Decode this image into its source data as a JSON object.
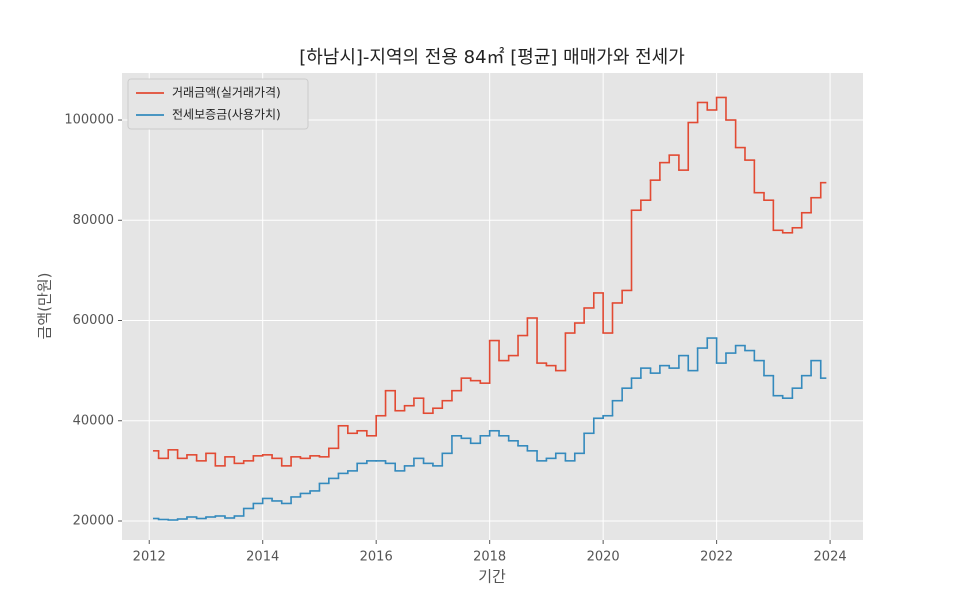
{
  "chart_data": {
    "type": "line",
    "drawstyle": "steps",
    "title": "[하남시]-지역의 전용 84㎡ [평균] 매매가와 전세가",
    "x_label": "기간",
    "y_label": "금액(만원)",
    "x": [
      2012.08,
      2012.25,
      2012.42,
      2012.58,
      2012.75,
      2012.92,
      2013.08,
      2013.25,
      2013.42,
      2013.58,
      2013.75,
      2013.92,
      2014.08,
      2014.25,
      2014.42,
      2014.58,
      2014.75,
      2014.92,
      2015.08,
      2015.25,
      2015.42,
      2015.58,
      2015.75,
      2015.92,
      2016.08,
      2016.25,
      2016.42,
      2016.58,
      2016.75,
      2016.92,
      2017.08,
      2017.25,
      2017.42,
      2017.58,
      2017.75,
      2017.92,
      2018.08,
      2018.25,
      2018.42,
      2018.58,
      2018.75,
      2018.92,
      2019.08,
      2019.25,
      2019.42,
      2019.58,
      2019.75,
      2019.92,
      2020.08,
      2020.25,
      2020.42,
      2020.58,
      2020.75,
      2020.92,
      2021.08,
      2021.25,
      2021.42,
      2021.58,
      2021.75,
      2021.92,
      2022.08,
      2022.25,
      2022.42,
      2022.58,
      2022.75,
      2022.92,
      2023.08,
      2023.25,
      2023.42,
      2023.58,
      2023.75,
      2023.92
    ],
    "series": [
      {
        "name": "거래금액(실거래가격)",
        "color": "#e24a33",
        "values": [
          34000,
          32500,
          34200,
          32500,
          33200,
          32000,
          33500,
          31000,
          32800,
          31500,
          32000,
          33000,
          33200,
          32500,
          31000,
          32800,
          32500,
          33000,
          32800,
          34500,
          39000,
          37500,
          38000,
          37000,
          41000,
          46000,
          42000,
          43000,
          44500,
          41500,
          42500,
          44000,
          46000,
          48500,
          48000,
          47500,
          56000,
          52000,
          53000,
          57000,
          60500,
          51500,
          51000,
          50000,
          57500,
          59500,
          62500,
          65500,
          57500,
          63500,
          66000,
          82000,
          84000,
          88000,
          91500,
          93000,
          90000,
          99500,
          103500,
          102000,
          104500,
          100000,
          94500,
          92000,
          85500,
          84000,
          78000,
          77500,
          78500,
          81500,
          84500,
          87500
        ]
      },
      {
        "name": "전세보증금(사용가치)",
        "color": "#348abd",
        "values": [
          20500,
          20300,
          20200,
          20400,
          20800,
          20500,
          20800,
          21000,
          20600,
          21000,
          22500,
          23500,
          24500,
          24000,
          23500,
          24800,
          25500,
          26000,
          27500,
          28500,
          29500,
          30000,
          31500,
          32000,
          32000,
          31500,
          30000,
          31000,
          32500,
          31500,
          31000,
          33500,
          37000,
          36500,
          35500,
          37000,
          38000,
          37000,
          36000,
          35000,
          34000,
          32000,
          32500,
          33500,
          32000,
          33500,
          37500,
          40500,
          41000,
          44000,
          46500,
          48500,
          50500,
          49500,
          51000,
          50500,
          53000,
          50000,
          54500,
          56500,
          51500,
          53500,
          55000,
          54000,
          52000,
          49000,
          45000,
          44500,
          46500,
          49000,
          52000,
          48500
        ]
      }
    ],
    "xlim": [
      2011.52,
      2024.58
    ],
    "ylim": [
      16210,
      109380
    ],
    "xticks": [
      2012,
      2014,
      2016,
      2018,
      2020,
      2022,
      2024
    ],
    "yticks": [
      20000,
      40000,
      60000,
      80000,
      100000
    ],
    "grid": true,
    "legend": "upper left"
  }
}
